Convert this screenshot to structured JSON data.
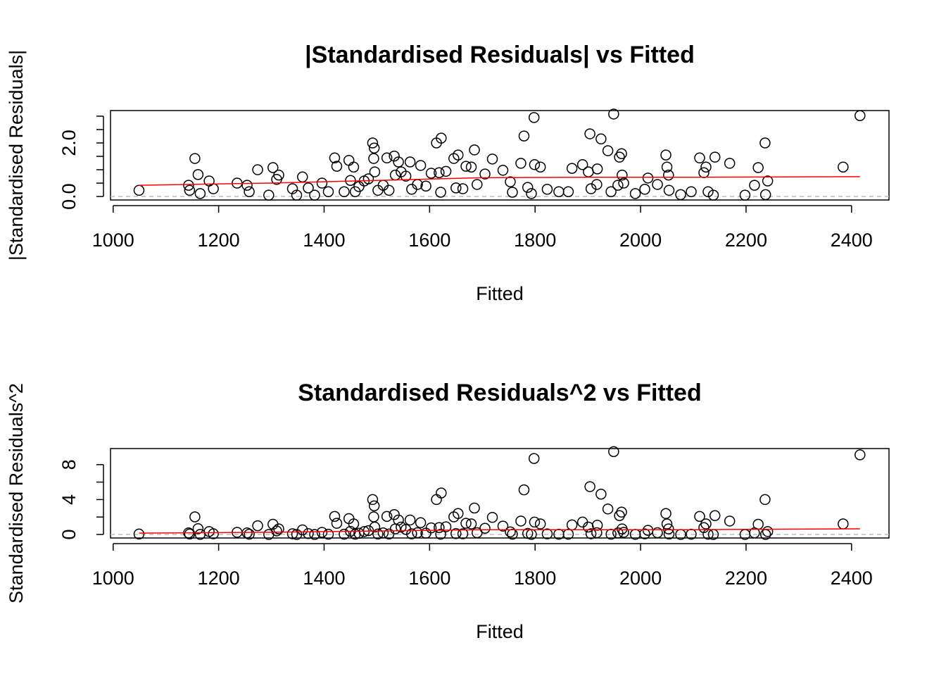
{
  "chart_data": [
    {
      "type": "scatter",
      "title": "|Standardised Residuals| vs Fitted",
      "x_label": "Fitted",
      "y_label": "|Standardised Residuals|",
      "xlim": [
        995,
        2471
      ],
      "xticks": [
        1000,
        1200,
        1400,
        1600,
        1800,
        2000,
        2200,
        2400
      ],
      "ylim": [
        -0.13,
        3.21
      ],
      "yticks": [
        {
          "value": 0,
          "label": "0.0"
        },
        {
          "value": 2,
          "label": "2.0"
        }
      ],
      "yminor": [
        0.5,
        1,
        1.5,
        2.5,
        3
      ],
      "hline": 0,
      "hline_color": "#bbbbbb",
      "color": "#000000",
      "x": [
        1049,
        1143,
        1145,
        1155,
        1161,
        1165,
        1182,
        1190,
        1235,
        1254,
        1258,
        1274,
        1295,
        1303,
        1310,
        1314,
        1340,
        1348,
        1359,
        1370,
        1382,
        1396,
        1408,
        1420,
        1424,
        1438,
        1447,
        1450,
        1456,
        1459,
        1466,
        1476,
        1484,
        1492,
        1494,
        1495,
        1496,
        1502,
        1512,
        1519,
        1523,
        1533,
        1535,
        1541,
        1546,
        1555,
        1563,
        1566,
        1577,
        1583,
        1593,
        1603,
        1613,
        1618,
        1622,
        1621,
        1631,
        1646,
        1650,
        1654,
        1663,
        1669,
        1679,
        1685,
        1690,
        1705,
        1719,
        1739,
        1753,
        1757,
        1773,
        1779,
        1786,
        1793,
        1798,
        1799,
        1810,
        1823,
        1845,
        1863,
        1870,
        1890,
        1901,
        1904,
        1906,
        1917,
        1918,
        1925,
        1938,
        1944,
        1949,
        1957,
        1960,
        1964,
        1965,
        1968,
        1990,
        2008,
        2014,
        2032,
        2048,
        2050,
        2053,
        2054,
        2076,
        2096,
        2112,
        2120,
        2124,
        2128,
        2138,
        2141,
        2169,
        2198,
        2216,
        2223,
        2236,
        2237,
        2241,
        2384,
        2416
      ],
      "values": [
        0.23,
        0.42,
        0.23,
        1.42,
        0.82,
        0.11,
        0.58,
        0.29,
        0.5,
        0.42,
        0.18,
        1.0,
        0.05,
        1.08,
        0.64,
        0.8,
        0.29,
        0.05,
        0.73,
        0.32,
        0.05,
        0.5,
        0.18,
        1.44,
        1.13,
        0.18,
        1.35,
        0.6,
        1.1,
        0.18,
        0.37,
        0.58,
        0.66,
        2.0,
        1.42,
        1.81,
        0.92,
        0.23,
        0.42,
        1.44,
        0.23,
        1.51,
        0.8,
        1.29,
        0.92,
        0.76,
        1.29,
        0.27,
        0.45,
        1.16,
        0.39,
        0.87,
        2.0,
        0.89,
        2.18,
        0.16,
        0.94,
        1.42,
        0.32,
        1.55,
        0.29,
        1.13,
        1.1,
        1.74,
        0.45,
        0.84,
        1.4,
        0.98,
        0.55,
        0.16,
        1.24,
        2.26,
        0.34,
        0.11,
        2.95,
        1.19,
        1.1,
        0.27,
        0.18,
        0.18,
        1.05,
        1.19,
        0.92,
        2.34,
        0.29,
        0.45,
        1.03,
        2.15,
        1.71,
        0.18,
        3.08,
        0.42,
        1.47,
        1.6,
        0.8,
        0.5,
        0.11,
        0.27,
        0.69,
        0.45,
        1.55,
        1.1,
        0.8,
        0.23,
        0.07,
        0.18,
        1.44,
        0.89,
        1.1,
        0.18,
        0.05,
        1.47,
        1.24,
        0.05,
        0.42,
        1.08,
        2.0,
        0.07,
        0.58,
        1.1,
        3.02
      ],
      "smooth": {
        "color": "#ff0000",
        "x": [
          1049,
          1300,
          1500,
          1700,
          1900,
          2100,
          2416
        ],
        "values": [
          0.42,
          0.5,
          0.6,
          0.7,
          0.72,
          0.72,
          0.74
        ]
      }
    },
    {
      "type": "scatter",
      "title": "Standardised Residuals^2 vs Fitted",
      "x_label": "Fitted",
      "y_label": "Standardised Residuals^2",
      "xlim": [
        995,
        2471
      ],
      "xticks": [
        1000,
        1200,
        1400,
        1600,
        1800,
        2000,
        2200,
        2400
      ],
      "ylim": [
        -0.4,
        9.84
      ],
      "yticks": [
        0,
        4,
        8
      ],
      "yminor": [
        2,
        6
      ],
      "hline": 0,
      "hline_color": "#bbbbbb",
      "color": "#000000",
      "x": [
        1049,
        1143,
        1145,
        1155,
        1161,
        1165,
        1182,
        1190,
        1235,
        1254,
        1258,
        1274,
        1295,
        1303,
        1310,
        1314,
        1340,
        1348,
        1359,
        1370,
        1382,
        1396,
        1408,
        1420,
        1424,
        1438,
        1447,
        1450,
        1456,
        1459,
        1466,
        1476,
        1484,
        1492,
        1494,
        1495,
        1496,
        1502,
        1512,
        1519,
        1523,
        1533,
        1535,
        1541,
        1546,
        1555,
        1563,
        1566,
        1577,
        1583,
        1593,
        1603,
        1613,
        1618,
        1622,
        1621,
        1631,
        1646,
        1650,
        1654,
        1663,
        1669,
        1679,
        1685,
        1690,
        1705,
        1719,
        1739,
        1753,
        1757,
        1773,
        1779,
        1786,
        1793,
        1798,
        1799,
        1810,
        1823,
        1845,
        1863,
        1870,
        1890,
        1901,
        1904,
        1906,
        1917,
        1918,
        1925,
        1938,
        1944,
        1949,
        1957,
        1960,
        1964,
        1965,
        1968,
        1990,
        2008,
        2014,
        2032,
        2048,
        2050,
        2053,
        2054,
        2076,
        2096,
        2112,
        2120,
        2124,
        2128,
        2138,
        2141,
        2169,
        2198,
        2216,
        2223,
        2236,
        2237,
        2241,
        2384,
        2416
      ],
      "values": [
        0.05,
        0.18,
        0.05,
        2.02,
        0.67,
        0.01,
        0.34,
        0.08,
        0.25,
        0.18,
        0.03,
        1.0,
        0,
        1.17,
        0.41,
        0.64,
        0.08,
        0,
        0.53,
        0.1,
        0,
        0.25,
        0.03,
        2.07,
        1.28,
        0.03,
        1.82,
        0.36,
        1.21,
        0.03,
        0.14,
        0.34,
        0.44,
        4.0,
        2.02,
        3.28,
        0.85,
        0.05,
        0.18,
        2.07,
        0.05,
        2.28,
        0.64,
        1.66,
        0.85,
        0.58,
        1.66,
        0.07,
        0.2,
        1.35,
        0.15,
        0.76,
        4.0,
        0.79,
        4.75,
        0.03,
        0.88,
        2.02,
        0.1,
        2.4,
        0.08,
        1.28,
        1.21,
        3.03,
        0.2,
        0.71,
        1.96,
        0.96,
        0.3,
        0.03,
        1.54,
        5.11,
        0.12,
        0.01,
        8.7,
        1.42,
        1.21,
        0.07,
        0.03,
        0.03,
        1.1,
        1.42,
        0.85,
        5.48,
        0.08,
        0.2,
        1.06,
        4.62,
        2.92,
        0.03,
        9.49,
        0.18,
        2.16,
        2.56,
        0.64,
        0.25,
        0.01,
        0.07,
        0.48,
        0.2,
        2.4,
        1.21,
        0.64,
        0.05,
        0,
        0.03,
        2.07,
        0.79,
        1.21,
        0.03,
        0,
        2.16,
        1.54,
        0,
        0.18,
        1.17,
        4.0,
        0,
        0.34,
        1.21,
        9.12
      ],
      "smooth": {
        "color": "#ff0000",
        "x": [
          1049,
          1300,
          1500,
          1700,
          1900,
          2100,
          2416
        ],
        "values": [
          0.16,
          0.25,
          0.4,
          0.55,
          0.55,
          0.55,
          0.65
        ]
      }
    }
  ]
}
